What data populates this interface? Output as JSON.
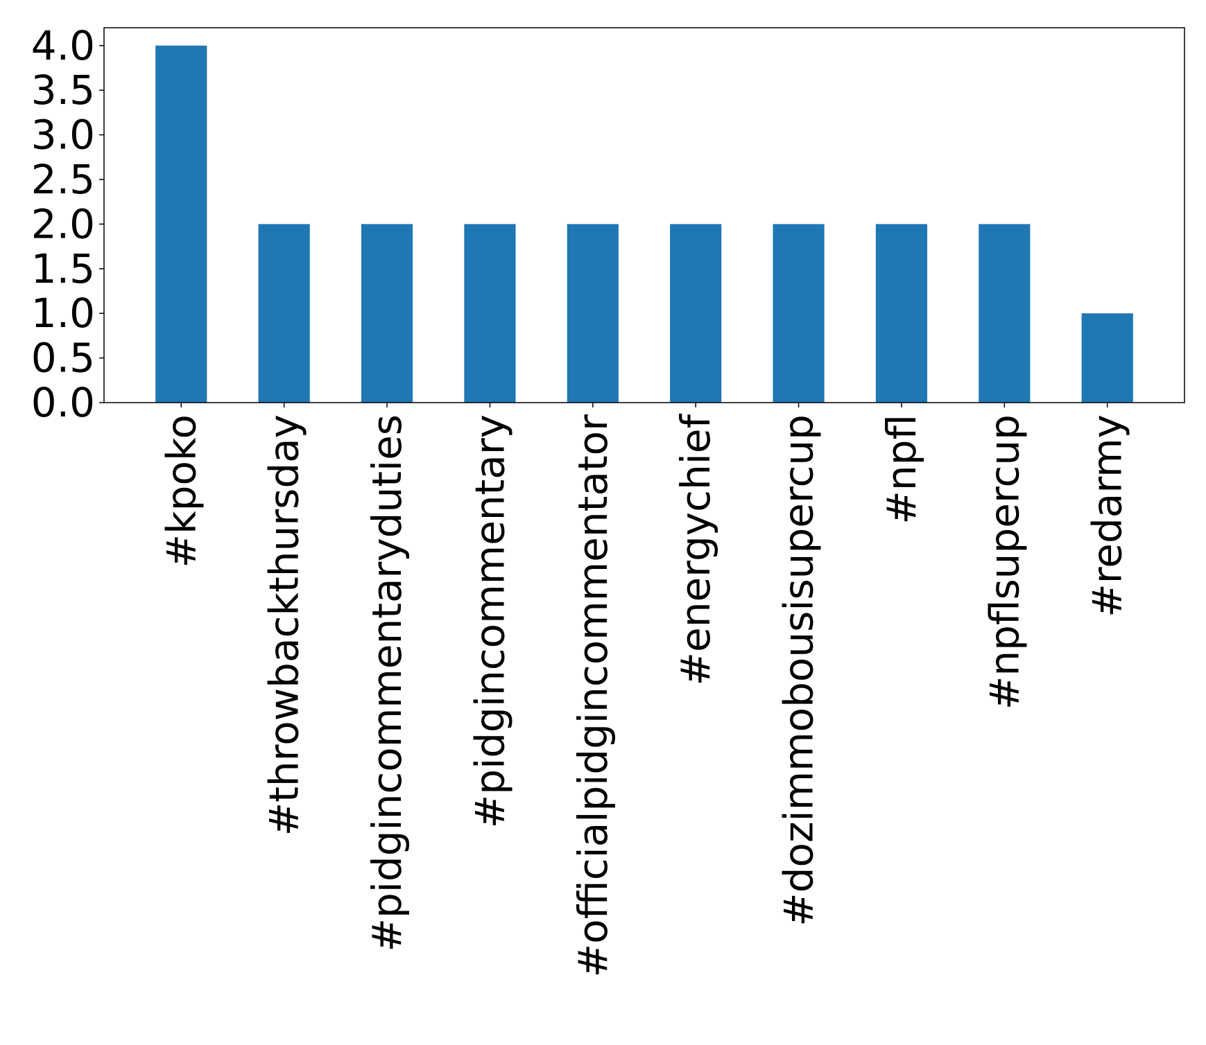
{
  "chart_data": {
    "type": "bar",
    "title": "",
    "xlabel": "",
    "ylabel": "",
    "categories": [
      "#kpoko",
      "#throwbackthursday",
      "#pidgincommentaryduties",
      "#pidgincommentary",
      "#officialpidgincommentator",
      "#energychief",
      "#dozimmobousisupercup",
      "#npfl",
      "#npflsupercup",
      "#redarmy"
    ],
    "values": [
      4,
      2,
      2,
      2,
      2,
      2,
      2,
      2,
      2,
      1
    ],
    "ylim": [
      0,
      4.2
    ],
    "yticks": [
      "0.0",
      "0.5",
      "1.0",
      "1.5",
      "2.0",
      "2.5",
      "3.0",
      "3.5",
      "4.0"
    ],
    "grid": false,
    "legend": "none",
    "bar_color": "#1f77b4",
    "x_tick_rotation": "vertical"
  }
}
